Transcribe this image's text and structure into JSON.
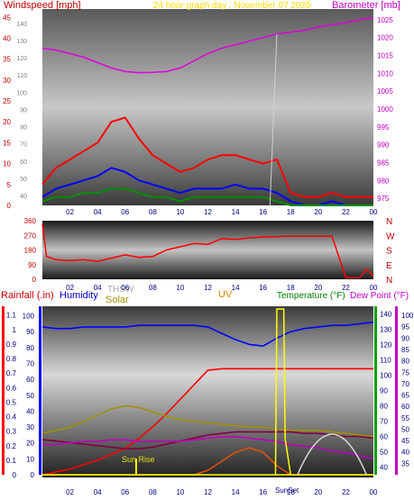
{
  "header": {
    "left_label": "Windspeed [mph]",
    "center_label": "24 hour graph day : November 07 2020",
    "right_label": "Barometer [mb]"
  },
  "x_ticks": [
    "02",
    "04",
    "06",
    "08",
    "10",
    "12",
    "14",
    "16",
    "18",
    "20",
    "22",
    "00"
  ],
  "chart_data": [
    {
      "type": "line",
      "panel": "top",
      "ylabel_left": "Windspeed [mph]",
      "ylabel_right": "Barometer [mb]",
      "left_ticks": [
        0,
        5,
        10,
        15,
        20,
        25,
        30,
        35,
        40,
        45
      ],
      "left_ticks_inner": [
        40,
        50,
        60,
        70,
        80,
        90,
        100,
        110,
        120,
        130,
        140
      ],
      "right_ticks": [
        975,
        980,
        985,
        990,
        995,
        1000,
        1005,
        1010,
        1015,
        1020,
        1025
      ],
      "ylim_left": [
        0,
        47
      ],
      "ylim_right": [
        973,
        1028
      ],
      "x": [
        0,
        1,
        2,
        3,
        4,
        5,
        6,
        7,
        8,
        9,
        10,
        11,
        12,
        13,
        14,
        15,
        16,
        17,
        18,
        19,
        20,
        21,
        22,
        23,
        24
      ],
      "series": [
        {
          "name": "Barometer [mb]",
          "color": "#e000e0",
          "axis": "right",
          "values": [
            1017,
            1016.5,
            1015.5,
            1014.5,
            1013,
            1011.5,
            1010.5,
            1010.2,
            1010.3,
            1010.5,
            1011.5,
            1013.5,
            1015.5,
            1017,
            1018,
            1019,
            1020,
            1021,
            1021.5,
            1022,
            1023,
            1023.5,
            1024.2,
            1025,
            1025.5
          ]
        },
        {
          "name": "Wind gust",
          "color": "#ff0000",
          "axis": "left",
          "values": [
            5,
            9,
            11,
            13,
            15,
            20,
            21,
            16,
            12,
            10,
            8,
            9,
            11,
            12,
            12,
            11,
            10,
            11,
            3,
            2,
            2,
            3,
            2,
            2,
            2
          ]
        },
        {
          "name": "Wind high",
          "color": "#0000ff",
          "axis": "left",
          "values": [
            2,
            4,
            5,
            6,
            7,
            9,
            8,
            6,
            5,
            4,
            3,
            4,
            4,
            4,
            5,
            4,
            4,
            3,
            1,
            0,
            0,
            1,
            0,
            0,
            0
          ]
        },
        {
          "name": "Wind avg",
          "color": "#009000",
          "axis": "left",
          "values": [
            1,
            2,
            2,
            3,
            3,
            4,
            4,
            3,
            2,
            2,
            1,
            2,
            2,
            2,
            2,
            2,
            2,
            1,
            0,
            0,
            0,
            0,
            0,
            0,
            0
          ]
        }
      ]
    },
    {
      "type": "line",
      "panel": "middle",
      "left_ticks": [
        0,
        90,
        180,
        270,
        360
      ],
      "right_ticks": [
        "N",
        "W",
        "S",
        "E",
        "N"
      ],
      "ylim": [
        0,
        360
      ],
      "x": [
        0,
        0.3,
        1,
        2,
        3,
        4,
        5,
        6,
        7,
        8,
        9,
        10,
        11,
        12,
        13,
        14,
        15,
        16,
        17,
        17.5,
        18,
        19,
        20,
        21,
        22,
        23,
        23.5,
        24
      ],
      "series": [
        {
          "name": "Wind direction",
          "color": "#ff0000",
          "values": [
            340,
            140,
            120,
            115,
            120,
            110,
            130,
            150,
            135,
            140,
            180,
            200,
            220,
            215,
            250,
            245,
            255,
            260,
            262,
            265,
            265,
            265,
            265,
            265,
            10,
            10,
            60,
            20
          ]
        }
      ]
    },
    {
      "type": "line",
      "panel": "bottom",
      "labels": {
        "rainfall": "Rainfall (.in)",
        "humidity": "Humidity",
        "thsw": "THSW",
        "solar": "Solar",
        "uv": "UV",
        "temperature": "Temperature (°F)",
        "dewpoint": "Dew Point (°F)"
      },
      "rain_ticks": [
        0,
        0.1,
        0.2,
        0.3,
        0.4,
        0.5,
        0.6,
        0.7,
        0.8,
        0.9,
        1,
        1.1
      ],
      "humidity_ticks": [
        0,
        10,
        20,
        30,
        40,
        50,
        60,
        70,
        80,
        90,
        100
      ],
      "temp_ticks": [
        40,
        50,
        60,
        70,
        80,
        90,
        100,
        110,
        120,
        130,
        140
      ],
      "dew_ticks": [
        35,
        40,
        45,
        50,
        55,
        60,
        65,
        70,
        75,
        80,
        85,
        90,
        95,
        100
      ],
      "annotations": [
        "Sun Rise",
        "SunSet"
      ],
      "x": [
        0,
        1,
        2,
        3,
        4,
        5,
        6,
        7,
        8,
        9,
        10,
        11,
        12,
        13,
        14,
        15,
        16,
        17,
        18,
        19,
        20,
        21,
        22,
        23,
        24
      ],
      "series": [
        {
          "name": "Humidity",
          "color": "#0000ff",
          "values": [
            93,
            92,
            92,
            93,
            93,
            93,
            93,
            94,
            94,
            94,
            94,
            94,
            93,
            89,
            85,
            82,
            81,
            86,
            90,
            92,
            93,
            94,
            94,
            95,
            96
          ]
        },
        {
          "name": "Rainfall",
          "color": "#ff0000",
          "values": [
            0,
            0.02,
            0.04,
            0.07,
            0.1,
            0.14,
            0.18,
            0.25,
            0.33,
            0.42,
            0.52,
            0.62,
            0.72,
            0.73,
            0.73,
            0.73,
            0.73,
            0.73,
            0.73,
            0.73,
            0.73,
            0.73,
            0.73,
            0.73,
            0.73
          ]
        },
        {
          "name": "THSW",
          "color": "#a09000",
          "values": [
            62,
            64,
            66,
            70,
            74,
            78,
            80,
            79,
            76,
            73,
            71,
            70,
            69,
            68,
            67,
            66,
            66,
            65,
            64,
            64,
            64,
            63,
            62,
            61,
            60
          ]
        },
        {
          "name": "Temperature",
          "color": "#800040",
          "values": [
            58,
            57,
            56,
            55,
            54,
            53,
            52,
            52,
            53,
            55,
            57,
            59,
            61,
            62,
            63,
            63,
            63,
            63,
            63,
            62,
            62,
            61,
            60,
            60,
            59
          ]
        },
        {
          "name": "Solar",
          "color": "#e05000",
          "values": [
            0,
            0,
            0,
            0,
            0,
            0,
            0,
            0,
            0,
            0,
            0,
            0,
            2,
            6,
            10,
            12,
            10,
            4,
            0,
            0,
            0,
            0,
            0,
            0,
            0
          ]
        },
        {
          "name": "Dew Point",
          "color": "#c000c0",
          "values": [
            19,
            19,
            20,
            21,
            21,
            22,
            22,
            21,
            21,
            21,
            21,
            22,
            23,
            24,
            24,
            23,
            22,
            21,
            19,
            18,
            17,
            15,
            14,
            12,
            10
          ]
        },
        {
          "name": "UV",
          "color": "#ffff00",
          "values": [
            0,
            0,
            0,
            0,
            0,
            0,
            0,
            0,
            0,
            0,
            0,
            0,
            0,
            0,
            0,
            0,
            0,
            0,
            0,
            0,
            0,
            0,
            0,
            0,
            0
          ]
        }
      ]
    }
  ]
}
